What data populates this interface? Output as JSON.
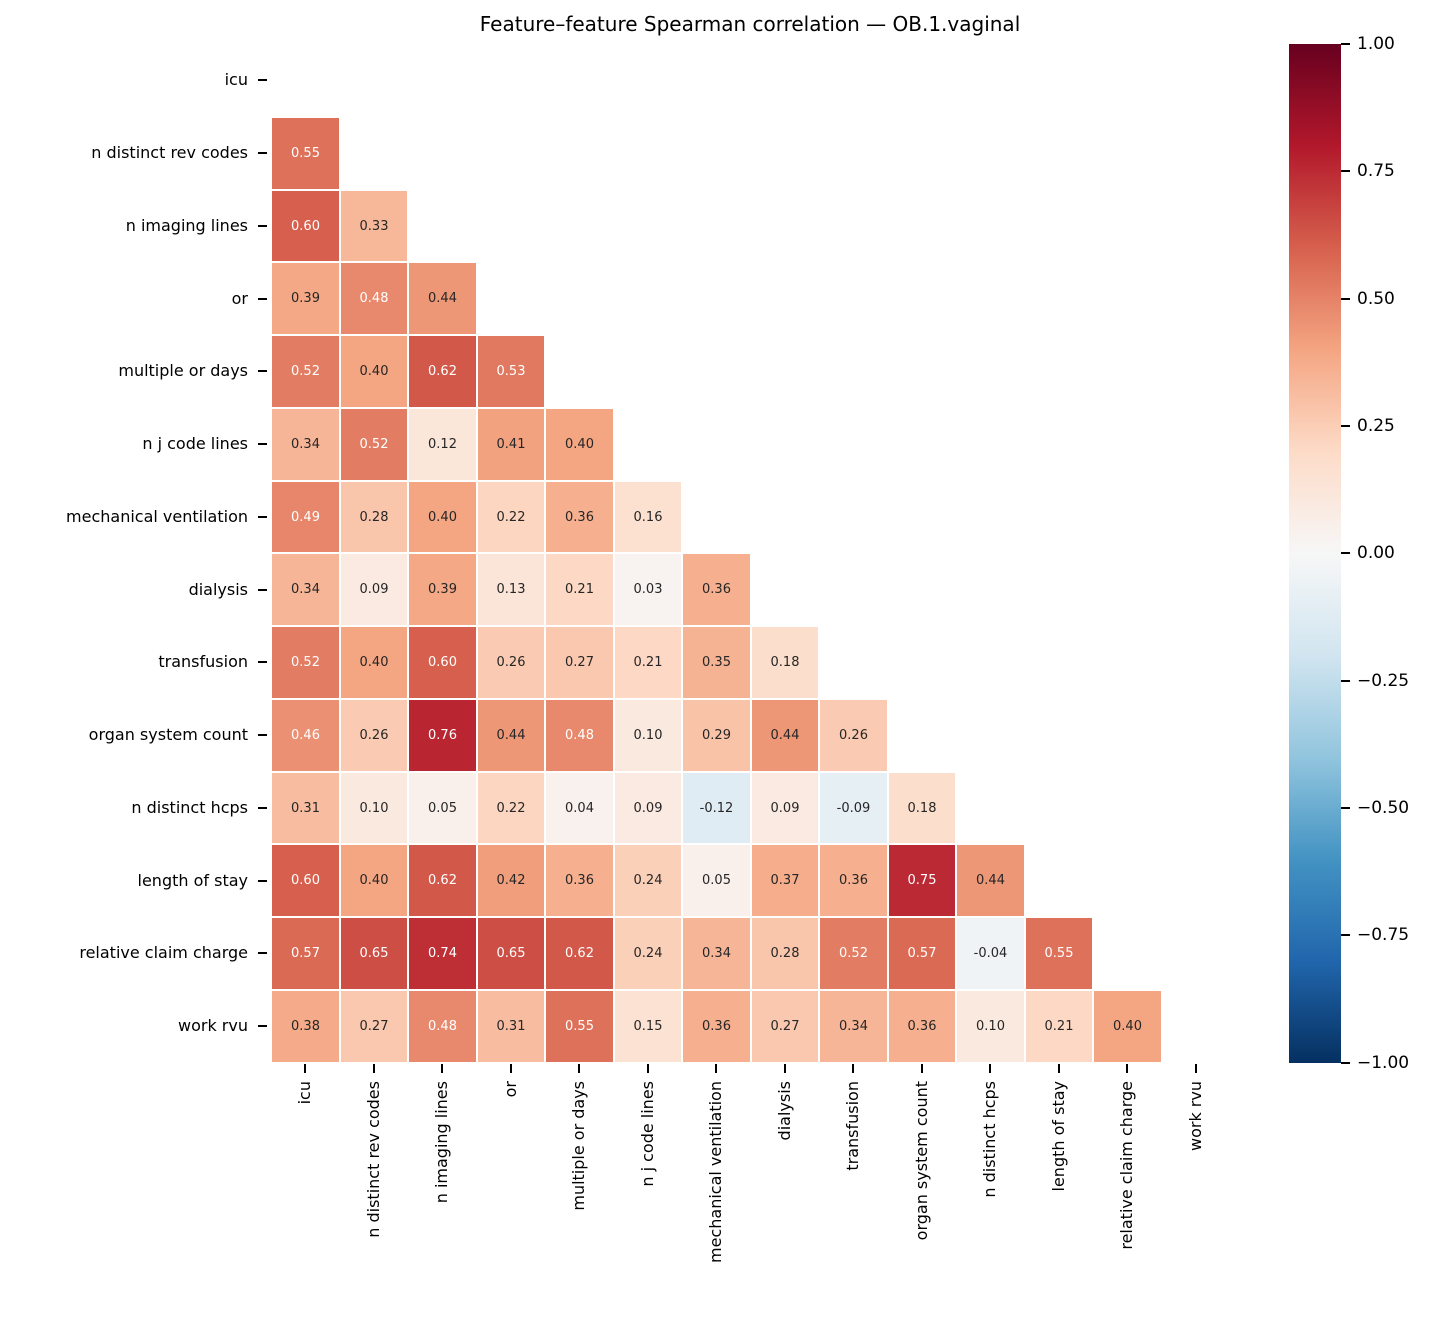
{
  "title": "Feature–feature Spearman correlation — OB.1.vaginal",
  "chart_data": {
    "type": "heatmap",
    "subtype": "lower-triangle-correlation-matrix",
    "title": "Feature–feature Spearman correlation — OB.1.vaginal",
    "labels": [
      "icu",
      "n distinct rev codes",
      "n imaging lines",
      "or",
      "multiple or days",
      "n j code lines",
      "mechanical ventilation",
      "dialysis",
      "transfusion",
      "organ system count",
      "n distinct hcps",
      "length of stay",
      "relative claim charge",
      "work rvu"
    ],
    "values": [
      [],
      [
        0.55
      ],
      [
        0.6,
        0.33
      ],
      [
        0.39,
        0.48,
        0.44
      ],
      [
        0.52,
        0.4,
        0.62,
        0.53
      ],
      [
        0.34,
        0.52,
        0.12,
        0.41,
        0.4
      ],
      [
        0.49,
        0.28,
        0.4,
        0.22,
        0.36,
        0.16
      ],
      [
        0.34,
        0.09,
        0.39,
        0.13,
        0.21,
        0.03,
        0.36
      ],
      [
        0.52,
        0.4,
        0.6,
        0.26,
        0.27,
        0.21,
        0.35,
        0.18
      ],
      [
        0.46,
        0.26,
        0.76,
        0.44,
        0.48,
        0.1,
        0.29,
        0.44,
        0.26
      ],
      [
        0.31,
        0.1,
        0.05,
        0.22,
        0.04,
        0.09,
        -0.12,
        0.09,
        -0.09,
        0.18
      ],
      [
        0.6,
        0.4,
        0.62,
        0.42,
        0.36,
        0.24,
        0.05,
        0.37,
        0.36,
        0.75,
        0.44
      ],
      [
        0.57,
        0.65,
        0.74,
        0.65,
        0.62,
        0.24,
        0.34,
        0.28,
        0.52,
        0.57,
        -0.04,
        0.55
      ],
      [
        0.38,
        0.27,
        0.48,
        0.31,
        0.55,
        0.15,
        0.36,
        0.27,
        0.34,
        0.36,
        0.1,
        0.21,
        0.4
      ]
    ],
    "vmin": -1,
    "vmax": 1,
    "annot_format": ".2f",
    "colormap": {
      "name": "RdBu_r",
      "stops": [
        "#053061",
        "#2166ac",
        "#4393c3",
        "#92c5de",
        "#d1e5f0",
        "#f7f7f7",
        "#fddbc7",
        "#f4a582",
        "#d6604d",
        "#b2182b",
        "#67001f"
      ]
    },
    "annotation_colors": {
      "light": "#ffffff",
      "dark": "#262626"
    },
    "gridline_color": "#ffffff",
    "background_color": "#ffffff",
    "legend_position": "right",
    "colorbar": {
      "tick_labels": [
        "1.00",
        "0.75",
        "0.50",
        "0.25",
        "0.00",
        "−0.25",
        "−0.50",
        "−0.75",
        "−1.00"
      ]
    }
  }
}
